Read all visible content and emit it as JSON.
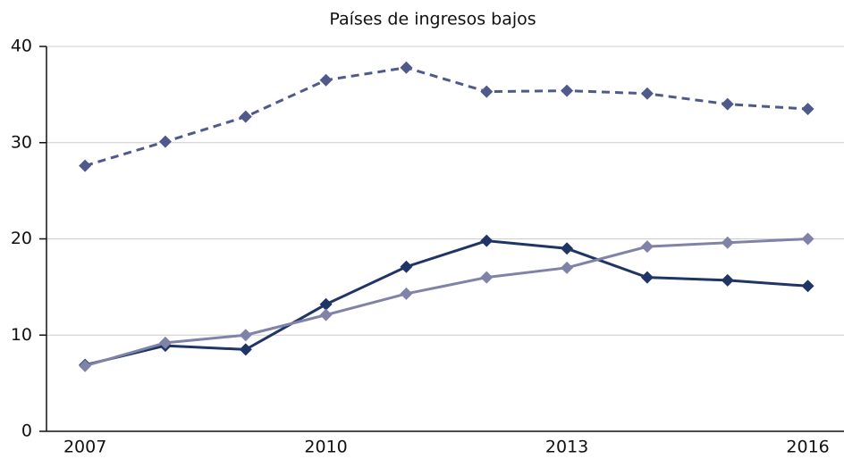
{
  "chart_data": {
    "type": "line",
    "title": "Países de ingresos bajos",
    "x": [
      2007,
      2008,
      2009,
      2010,
      2011,
      2012,
      2013,
      2014,
      2015,
      2016
    ],
    "series": [
      {
        "color": "#4f5a8a",
        "dashed": true,
        "values": [
          27.6,
          30.1,
          32.7,
          36.5,
          37.8,
          35.3,
          35.4,
          35.1,
          34.0,
          33.5
        ]
      },
      {
        "color": "#1f3566",
        "dashed": false,
        "values": [
          6.9,
          8.9,
          8.5,
          13.2,
          17.1,
          19.8,
          19.0,
          16.0,
          15.7,
          15.1
        ]
      },
      {
        "color": "#8083a8",
        "dashed": false,
        "values": [
          6.8,
          9.2,
          10.0,
          12.1,
          14.3,
          16.0,
          17.0,
          19.2,
          19.6,
          20.0
        ]
      }
    ],
    "xlim": [
      2006.52,
      2016.45
    ],
    "xticks": [
      2007,
      2010,
      2013,
      2016
    ],
    "ylim": [
      0,
      40
    ],
    "yticks": [
      0,
      10,
      20,
      30,
      40
    ],
    "grid": true
  }
}
